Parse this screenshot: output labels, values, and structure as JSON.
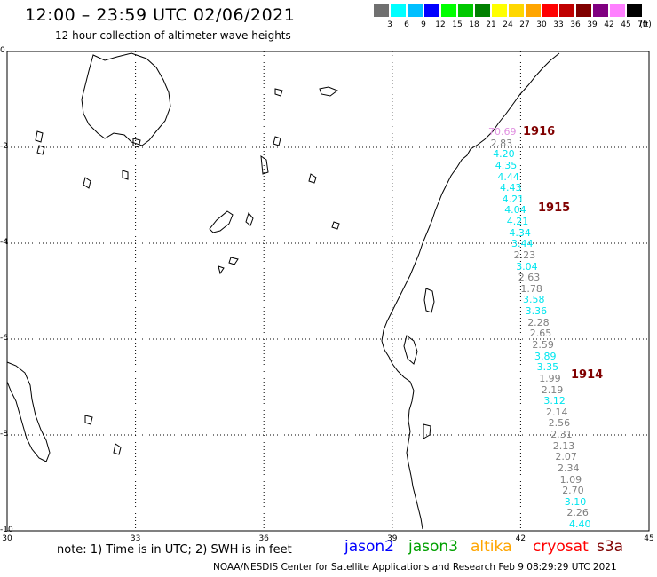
{
  "header": {
    "title": "12:00 – 23:59 UTC 02/06/2021",
    "subtitle": "12 hour collection of altimeter wave heights"
  },
  "legend": {
    "units": "(ft)",
    "bins": [
      {
        "label": "3",
        "color": "#707070"
      },
      {
        "label": "6",
        "color": "#00ffff"
      },
      {
        "label": "9",
        "color": "#00bfff"
      },
      {
        "label": "12",
        "color": "#0000ff"
      },
      {
        "label": "15",
        "color": "#00ff00"
      },
      {
        "label": "18",
        "color": "#00c800"
      },
      {
        "label": "21",
        "color": "#008000"
      },
      {
        "label": "24",
        "color": "#ffff00"
      },
      {
        "label": "27",
        "color": "#ffd700"
      },
      {
        "label": "30",
        "color": "#ffa500"
      },
      {
        "label": "33",
        "color": "#ff0000"
      },
      {
        "label": "36",
        "color": "#c00000"
      },
      {
        "label": "39",
        "color": "#800000"
      },
      {
        "label": "42",
        "color": "#800080"
      },
      {
        "label": "45",
        "color": "#ff80ff"
      },
      {
        "label": "70",
        "color": "#000000"
      }
    ]
  },
  "axes": {
    "lon_ticks": [
      "30",
      "33",
      "36",
      "39",
      "42",
      "45"
    ],
    "lat_ticks": [
      "0",
      "-2",
      "-4",
      "-6",
      "-8",
      "-10"
    ]
  },
  "track_times": [
    "1916",
    "1915",
    "1914"
  ],
  "observations": [
    {
      "value": "70.69",
      "color": "#e090e0"
    },
    {
      "value": "2.83",
      "color": "#808080"
    },
    {
      "value": "4.20",
      "color": "#00e5ee"
    },
    {
      "value": "4.35",
      "color": "#00e5ee"
    },
    {
      "value": "4.44",
      "color": "#00e5ee"
    },
    {
      "value": "4.43",
      "color": "#00e5ee"
    },
    {
      "value": "4.21",
      "color": "#00e5ee"
    },
    {
      "value": "4.04",
      "color": "#00e5ee"
    },
    {
      "value": "4.21",
      "color": "#00e5ee"
    },
    {
      "value": "4.34",
      "color": "#00e5ee"
    },
    {
      "value": "3.44",
      "color": "#00e5ee"
    },
    {
      "value": "2.23",
      "color": "#808080"
    },
    {
      "value": "3.04",
      "color": "#00e5ee"
    },
    {
      "value": "2.63",
      "color": "#808080"
    },
    {
      "value": "1.78",
      "color": "#808080"
    },
    {
      "value": "3.58",
      "color": "#00e5ee"
    },
    {
      "value": "3.36",
      "color": "#00e5ee"
    },
    {
      "value": "2.28",
      "color": "#808080"
    },
    {
      "value": "2.65",
      "color": "#808080"
    },
    {
      "value": "2.59",
      "color": "#808080"
    },
    {
      "value": "3.89",
      "color": "#00e5ee"
    },
    {
      "value": "3.35",
      "color": "#00e5ee"
    },
    {
      "value": "1.99",
      "color": "#808080"
    },
    {
      "value": "2.19",
      "color": "#808080"
    },
    {
      "value": "3.12",
      "color": "#00e5ee"
    },
    {
      "value": "2.14",
      "color": "#808080"
    },
    {
      "value": "2.56",
      "color": "#808080"
    },
    {
      "value": "2.31",
      "color": "#808080"
    },
    {
      "value": "2.13",
      "color": "#808080"
    },
    {
      "value": "2.07",
      "color": "#808080"
    },
    {
      "value": "2.34",
      "color": "#808080"
    },
    {
      "value": "1.09",
      "color": "#808080"
    },
    {
      "value": "2.70",
      "color": "#808080"
    },
    {
      "value": "3.10",
      "color": "#00e5ee"
    },
    {
      "value": "2.26",
      "color": "#808080"
    },
    {
      "value": "4.40",
      "color": "#00e5ee"
    }
  ],
  "footer": {
    "note": "note: 1) Time is in UTC; 2) SWH is in feet",
    "credit": "NOAA/NESDIS Center for Satellite Applications and Research    Feb  9 08:29:29 UTC 2021",
    "satellites": [
      {
        "name": "jason2",
        "color": "#0000ff"
      },
      {
        "name": "jason3",
        "color": "#00a000"
      },
      {
        "name": "altika",
        "color": "#ffa500"
      },
      {
        "name": "cryosat",
        "color": "#ff0000"
      },
      {
        "name": "s3a",
        "color": "#800000"
      }
    ]
  }
}
